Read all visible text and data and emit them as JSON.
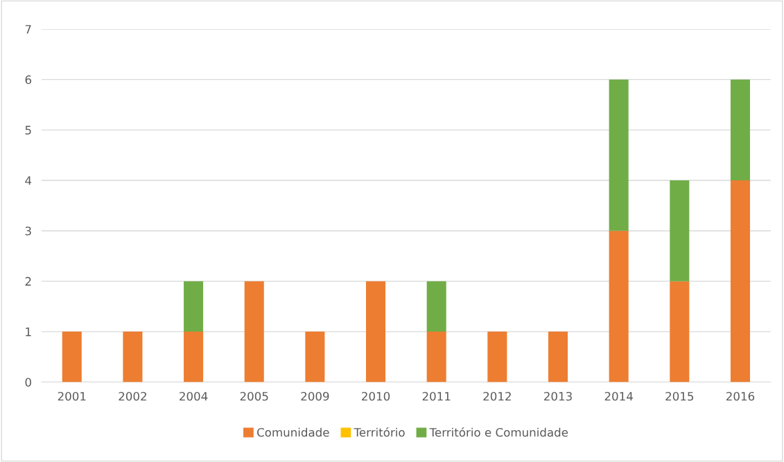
{
  "chart_data": {
    "type": "bar",
    "stacked": true,
    "categories": [
      "2001",
      "2002",
      "2004",
      "2005",
      "2009",
      "2010",
      "2011",
      "2012",
      "2013",
      "2014",
      "2015",
      "2016"
    ],
    "series": [
      {
        "name": "Comunidade",
        "color": "#ed7d31",
        "values": [
          1,
          1,
          1,
          2,
          1,
          2,
          1,
          1,
          1,
          3,
          2,
          4
        ]
      },
      {
        "name": "Território",
        "color": "#ffc000",
        "values": [
          0,
          0,
          0,
          0,
          0,
          0,
          0,
          0,
          0,
          0,
          0,
          0
        ]
      },
      {
        "name": "Território e Comunidade",
        "color": "#70ad47",
        "values": [
          0,
          0,
          1,
          0,
          0,
          0,
          1,
          0,
          0,
          3,
          2,
          2
        ]
      }
    ],
    "ylim": [
      0,
      7
    ],
    "yticks": [
      0,
      1,
      2,
      3,
      4,
      5,
      6,
      7
    ],
    "grid": "y",
    "legend": "bottom"
  }
}
